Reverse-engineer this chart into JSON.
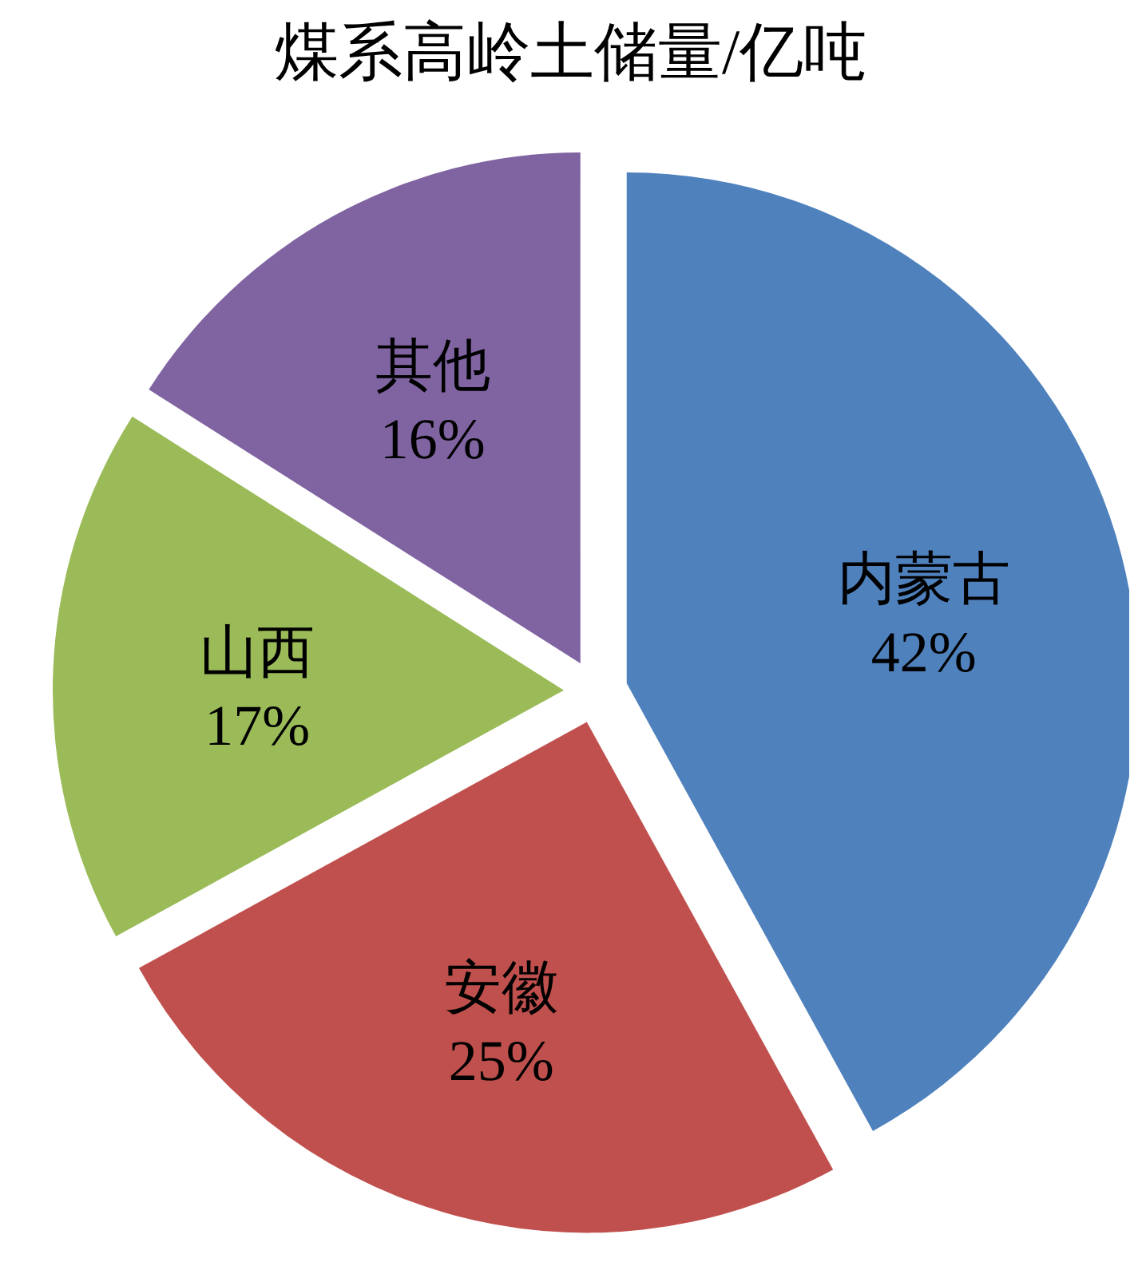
{
  "chart_data": {
    "type": "pie",
    "title": "煤系高岭土储量/亿吨",
    "categories": [
      "内蒙古",
      "安徽",
      "山西",
      "其他"
    ],
    "values": [
      42,
      25,
      17,
      16
    ],
    "value_labels": [
      "42%",
      "25%",
      "17%",
      "16%"
    ],
    "colors": [
      "#4f81bd",
      "#c0504d",
      "#9bbb59",
      "#8064a2"
    ],
    "legend": false
  }
}
